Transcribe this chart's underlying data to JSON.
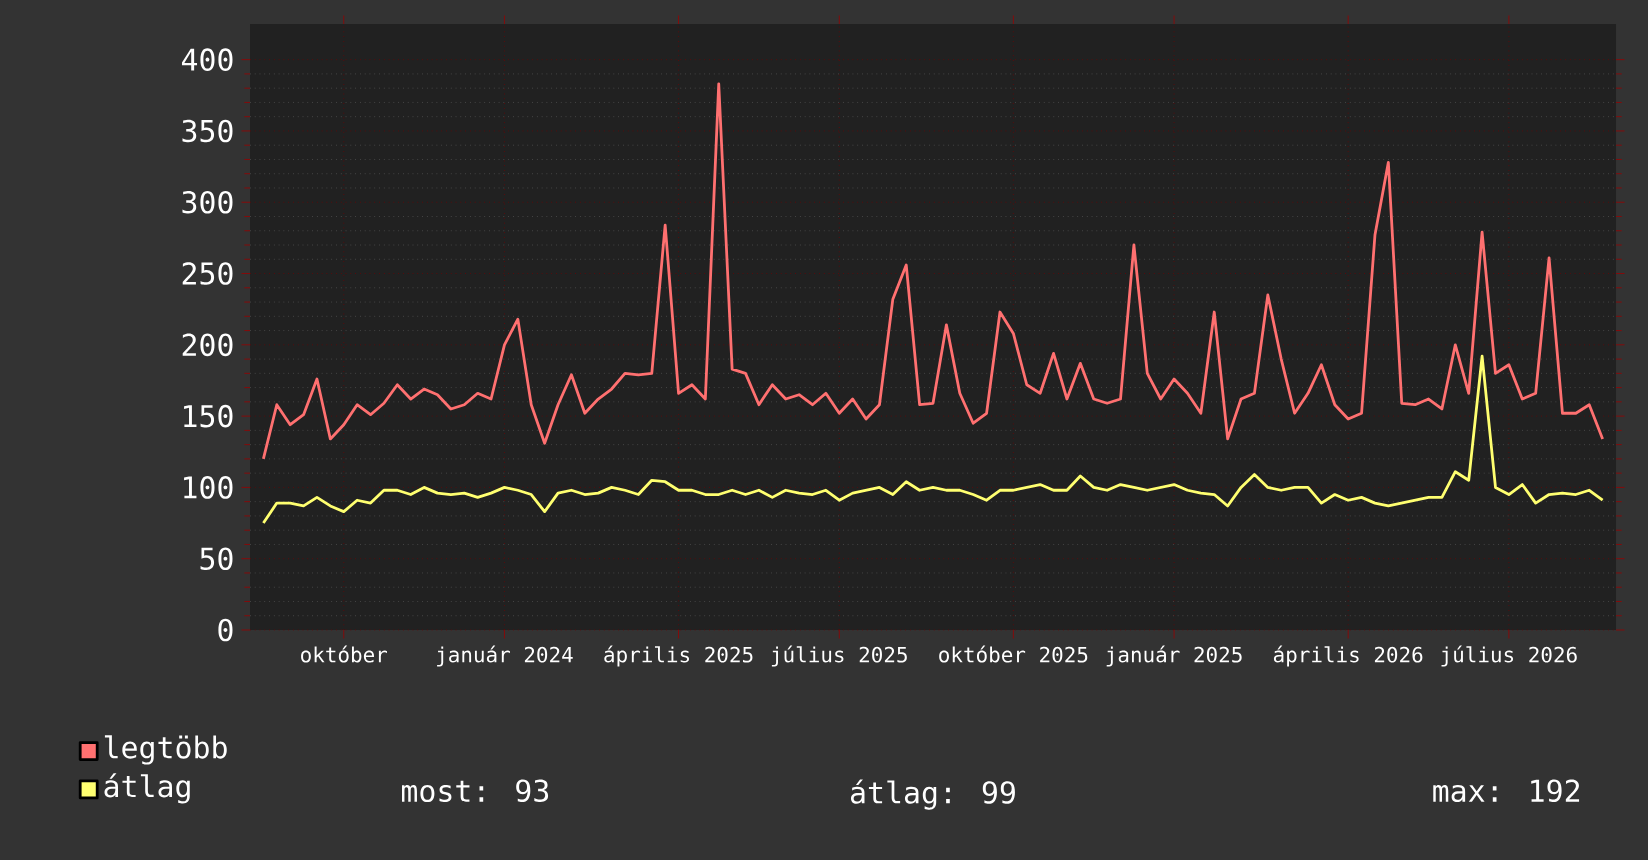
{
  "chart_data": {
    "type": "line",
    "categories": [
      null,
      null,
      null,
      null,
      null,
      null,
      "október",
      null,
      null,
      null,
      null,
      null,
      null,
      null,
      null,
      null,
      null,
      null,
      "január 2024",
      null,
      null,
      null,
      null,
      null,
      null,
      null,
      null,
      null,
      null,
      null,
      null,
      "április 2025",
      null,
      null,
      null,
      null,
      null,
      null,
      null,
      null,
      null,
      null,
      null,
      "július 2025",
      null,
      null,
      null,
      null,
      null,
      null,
      null,
      null,
      null,
      null,
      null,
      null,
      "október 2025",
      null,
      null,
      null,
      null,
      null,
      null,
      null,
      null,
      null,
      null,
      null,
      "január 2025",
      null,
      null,
      null,
      null,
      null,
      null,
      null,
      null,
      null,
      null,
      null,
      null,
      "április 2026",
      null,
      null,
      null,
      null,
      null,
      null,
      null,
      null,
      null,
      null,
      null,
      "július 2026",
      null,
      null,
      null,
      null,
      null,
      null,
      null
    ],
    "series": [
      {
        "name": "legtöbb",
        "color": "#ff7070",
        "values": [
          120,
          158,
          144,
          151,
          176,
          134,
          144,
          158,
          151,
          159,
          172,
          162,
          169,
          165,
          155,
          158,
          166,
          162,
          200,
          218,
          158,
          131,
          158,
          179,
          152,
          162,
          169,
          180,
          179,
          180,
          284,
          166,
          172,
          162,
          383,
          183,
          180,
          158,
          172,
          162,
          165,
          158,
          166,
          152,
          162,
          148,
          158,
          232,
          256,
          158,
          159,
          214,
          166,
          145,
          152,
          223,
          208,
          172,
          166,
          194,
          162,
          187,
          162,
          159,
          162,
          270,
          180,
          162,
          176,
          166,
          152,
          223,
          134,
          162,
          166,
          235,
          190,
          152,
          166,
          186,
          158,
          148,
          152,
          277,
          328,
          159,
          158,
          162,
          155,
          200,
          166,
          279,
          180,
          186,
          162,
          166,
          261,
          152,
          152,
          158,
          134
        ]
      },
      {
        "name": "átlag",
        "color": "#ffff70",
        "values": [
          75,
          89,
          89,
          87,
          93,
          87,
          83,
          91,
          89,
          98,
          98,
          95,
          100,
          96,
          95,
          96,
          93,
          96,
          100,
          98,
          95,
          83,
          96,
          98,
          95,
          96,
          100,
          98,
          95,
          105,
          104,
          98,
          98,
          95,
          95,
          98,
          95,
          98,
          93,
          98,
          96,
          95,
          98,
          91,
          96,
          98,
          100,
          95,
          104,
          98,
          100,
          98,
          98,
          95,
          91,
          98,
          98,
          100,
          102,
          98,
          98,
          108,
          100,
          98,
          102,
          100,
          98,
          100,
          102,
          98,
          96,
          95,
          87,
          100,
          109,
          100,
          98,
          100,
          100,
          89,
          95,
          91,
          93,
          89,
          87,
          89,
          91,
          93,
          93,
          111,
          105,
          192,
          100,
          95,
          102,
          89,
          95,
          96,
          95,
          98,
          91
        ]
      }
    ],
    "ylim": [
      0,
      425
    ],
    "yticks": [
      0,
      50,
      100,
      150,
      200,
      250,
      300,
      350,
      400
    ],
    "grid": true,
    "legend": "bottom left",
    "annotations": [
      "most: 93",
      "átlag: 99",
      "max: 192"
    ]
  }
}
